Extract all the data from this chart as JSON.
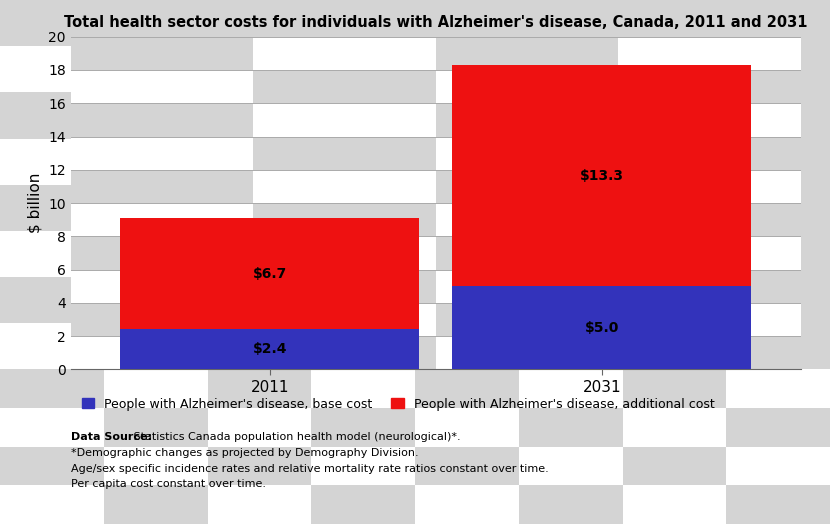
{
  "title": "Total health sector costs for individuals with Alzheimer's disease, Canada, 2011 and 2031",
  "ylabel": "$ billion",
  "categories": [
    "2011",
    "2031"
  ],
  "base_values": [
    2.4,
    5.0
  ],
  "additional_values": [
    6.7,
    13.3
  ],
  "base_color": "#3333bb",
  "additional_color": "#ee1111",
  "base_label": "People with Alzheimer's disease, base cost",
  "additional_label": "People with Alzheimer's disease, additional cost",
  "ylim": [
    0,
    20
  ],
  "yticks": [
    0,
    2,
    4,
    6,
    8,
    10,
    12,
    14,
    16,
    18,
    20
  ],
  "bar_width": 0.45,
  "base_annotations": [
    "$2.4",
    "$5.0"
  ],
  "additional_annotations": [
    "$6.7",
    "$13.3"
  ],
  "footnote_bold": "Data Source:",
  "footnote_lines": [
    " Statistics Canada population health model (neurological)*.",
    "*Demographic changes as projected by Demography Division.",
    "Age/sex specific incidence rates and relative mortality rate ratios constant over time.",
    "Per capita cost constant over time."
  ],
  "title_fontsize": 10.5,
  "label_fontsize": 9,
  "annotation_fontsize": 10,
  "legend_fontsize": 9,
  "footnote_fontsize": 8,
  "checker_light": "#ffffff",
  "checker_dark": "#d4d4d4",
  "grid_color": "#aaaaaa",
  "figure_bg": "#d4d4d4",
  "annotation_color": "#000000",
  "bar_positions": [
    0.25,
    0.75
  ]
}
